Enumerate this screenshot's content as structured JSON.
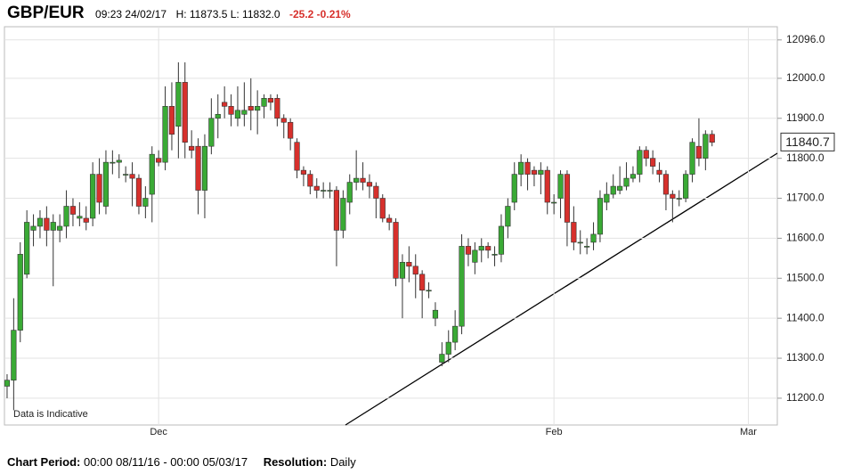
{
  "chart_data": {
    "type": "candlestick",
    "title": "GBP/EUR",
    "time": "09:23 24/02/17",
    "high_low": "H: 11873.5 L: 11832.0",
    "change": "-25.2 -0.21%",
    "note": "Data is Indicative",
    "period_label": "Chart Period:",
    "period": "00:00 08/11/16 - 00:00 05/03/17",
    "resolution_label": "Resolution:",
    "resolution": "Daily",
    "last_price": 11840.7,
    "up_color": "#3aaa35",
    "down_color": "#d7302c",
    "change_color": "#d7302c",
    "grid": true,
    "xlim": [
      -0.4,
      116.9
    ],
    "xticks": [
      {
        "value": 23,
        "label": "Dec"
      },
      {
        "value": 83,
        "label": "Feb"
      },
      {
        "value": 112.5,
        "label": "Mar"
      }
    ],
    "ylim": [
      11133,
      12129
    ],
    "yticks": [
      {
        "value": 11200,
        "label": "11200.0"
      },
      {
        "value": 11300,
        "label": "11300.0"
      },
      {
        "value": 11400,
        "label": "11400.0"
      },
      {
        "value": 11500,
        "label": "11500.0"
      },
      {
        "value": 11600,
        "label": "11600.0"
      },
      {
        "value": 11700,
        "label": "11700.0"
      },
      {
        "value": 11800,
        "label": "11800.0"
      },
      {
        "value": 11900,
        "label": "11900.0"
      },
      {
        "value": 12000,
        "label": "12000.0"
      },
      {
        "value": 12096,
        "label": "12096.0"
      }
    ],
    "open": [
      11230,
      11245,
      11370,
      11510,
      11620,
      11630,
      11650,
      11620,
      11620,
      11630,
      11680,
      11650,
      11650,
      11650,
      11760,
      11680,
      11790,
      11790,
      11760,
      11760,
      11750,
      11680,
      11710,
      11800,
      11790,
      11930,
      11880,
      11990,
      11830,
      11830,
      11720,
      11830,
      11900,
      11940,
      11930,
      11900,
      11910,
      11930,
      11920,
      11930,
      11950,
      11950,
      11900,
      11890,
      11840,
      11770,
      11760,
      11730,
      11720,
      11720,
      11720,
      11620,
      11690,
      11740,
      11750,
      11740,
      11730,
      11700,
      11650,
      11640,
      11500,
      11540,
      11530,
      11510,
      11470,
      11400,
      11290,
      11310,
      11340,
      11380,
      11580,
      11540,
      11570,
      11580,
      11560,
      11560,
      11630,
      11690,
      11760,
      11790,
      11770,
      11760,
      11770,
      11690,
      11700,
      11760,
      11640,
      11590,
      11580,
      11590,
      11610,
      11690,
      11710,
      11720,
      11730,
      11750,
      11760,
      11820,
      11800,
      11770,
      11760,
      11710,
      11700,
      11700,
      11760,
      11830,
      11800,
      11860
    ],
    "high": [
      11260,
      11450,
      11590,
      11670,
      11660,
      11670,
      11680,
      11660,
      11660,
      11720,
      11700,
      11690,
      11680,
      11790,
      11800,
      11820,
      11820,
      11810,
      11780,
      11790,
      11760,
      11730,
      11830,
      11820,
      11980,
      11990,
      12040,
      12040,
      11870,
      11850,
      11860,
      11950,
      11960,
      11980,
      11960,
      11980,
      11990,
      12000,
      11970,
      11960,
      11960,
      11960,
      11910,
      11900,
      11850,
      11780,
      11770,
      11750,
      11740,
      11740,
      11730,
      11720,
      11760,
      11820,
      11790,
      11760,
      11740,
      11710,
      11660,
      11650,
      11560,
      11580,
      11560,
      11520,
      11490,
      11440,
      11340,
      11370,
      11420,
      11610,
      11600,
      11590,
      11600,
      11590,
      11580,
      11660,
      11700,
      11790,
      11810,
      11800,
      11780,
      11790,
      11780,
      11710,
      11770,
      11770,
      11680,
      11620,
      11600,
      11640,
      11720,
      11740,
      11760,
      11780,
      11790,
      11780,
      11830,
      11830,
      11820,
      11790,
      11770,
      11720,
      11720,
      11770,
      11850,
      11900,
      11870,
      11870
    ],
    "low": [
      11200,
      11170,
      11340,
      11500,
      11580,
      11600,
      11580,
      11480,
      11590,
      11600,
      11630,
      11630,
      11620,
      11630,
      11660,
      11660,
      11760,
      11750,
      11740,
      11680,
      11660,
      11650,
      11640,
      11780,
      11770,
      11820,
      11800,
      11800,
      11800,
      11660,
      11650,
      11810,
      11850,
      11900,
      11880,
      11880,
      11880,
      11870,
      11860,
      11900,
      11920,
      11880,
      11850,
      11820,
      11750,
      11730,
      11710,
      11700,
      11700,
      11700,
      11530,
      11600,
      11660,
      11720,
      11720,
      11700,
      11650,
      11640,
      11620,
      11480,
      11400,
      11490,
      11450,
      11400,
      11450,
      11380,
      11280,
      11290,
      11320,
      11360,
      11530,
      11510,
      11540,
      11550,
      11530,
      11540,
      11600,
      11670,
      11730,
      11720,
      11730,
      11710,
      11660,
      11660,
      11650,
      11580,
      11570,
      11560,
      11560,
      11570,
      11590,
      11670,
      11700,
      11710,
      11720,
      11740,
      11740,
      11780,
      11760,
      11740,
      11670,
      11640,
      11680,
      11690,
      11740,
      11780,
      11770,
      11830
    ],
    "close": [
      11245,
      11370,
      11560,
      11640,
      11630,
      11650,
      11620,
      11640,
      11630,
      11680,
      11660,
      11655,
      11640,
      11760,
      11690,
      11790,
      11790,
      11795,
      11760,
      11750,
      11680,
      11700,
      11810,
      11790,
      11930,
      11860,
      11990,
      11840,
      11820,
      11720,
      11830,
      11900,
      11910,
      11930,
      11910,
      11920,
      11920,
      11920,
      11930,
      11950,
      11940,
      11900,
      11890,
      11850,
      11770,
      11760,
      11730,
      11720,
      11720,
      11720,
      11620,
      11700,
      11740,
      11750,
      11740,
      11730,
      11700,
      11650,
      11640,
      11500,
      11540,
      11530,
      11510,
      11470,
      11470,
      11420,
      11310,
      11340,
      11380,
      11580,
      11560,
      11570,
      11580,
      11570,
      11560,
      11630,
      11680,
      11760,
      11790,
      11760,
      11760,
      11770,
      11690,
      11690,
      11760,
      11640,
      11590,
      11590,
      11580,
      11610,
      11700,
      11710,
      11730,
      11730,
      11750,
      11760,
      11820,
      11800,
      11780,
      11760,
      11710,
      11700,
      11700,
      11760,
      11840,
      11800,
      11860,
      11840
    ]
  }
}
